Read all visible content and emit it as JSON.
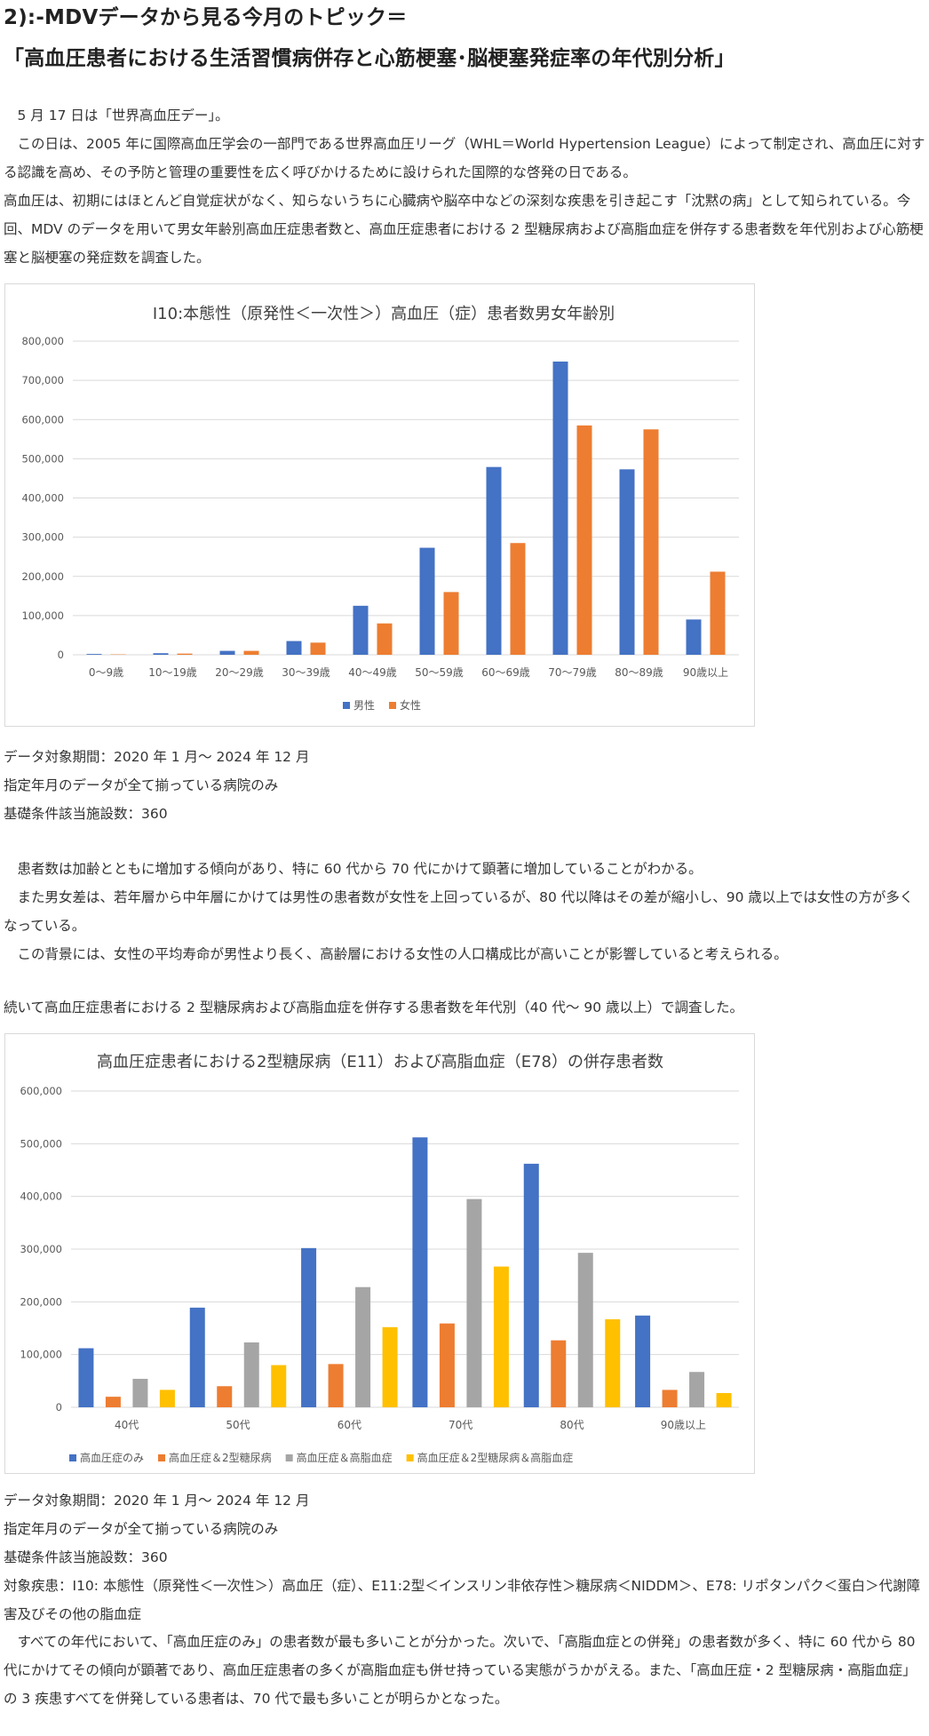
{
  "heading": {
    "line1": "2):-MDVデータから見る今月のトピック＝",
    "line2": "「高血圧患者における生活習慣病併存と心筋梗塞･脳梗塞発症率の年代別分析」"
  },
  "intro": [
    "　5 月 17 日は「世界高血圧デー」。",
    "　この日は、2005 年に国際高血圧学会の一部門である世界高血圧リーグ（WHL＝World Hypertension League）によって制定され、高血圧に対する認識を高め、その予防と管理の重要性を広く呼びかけるために設けられた国際的な啓発の日である。",
    "高血圧は、初期にはほとんど自覚症状がなく、知らないうちに心臓病や脳卒中などの深刻な疾患を引き起こす「沈黙の病」として知られている。今回、MDV のデータを用いて男女年齢別高血圧症患者数と、高血圧症患者における 2 型糖尿病および高脂血症を併存する患者数を年代別および心筋梗塞と脳梗塞の発症数を調査した。"
  ],
  "chart1_notes": [
    "データ対象期間：2020 年 1 月～ 2024 年 12 月",
    "指定年月のデータが全て揃っている病院のみ",
    "基礎条件該当施設数：360"
  ],
  "analysis1": [
    "　患者数は加齢とともに増加する傾向があり、特に 60 代から 70 代にかけて顕著に増加していることがわかる。",
    "　また男女差は、若年層から中年層にかけては男性の患者数が女性を上回っているが、80 代以降はその差が縮小し、90 歳以上では女性の方が多くなっている。",
    "　この背景には、女性の平均寿命が男性より長く、高齢層における女性の人口構成比が高いことが影響していると考えられる。"
  ],
  "intro2": "続いて高血圧症患者における 2 型糖尿病および高脂血症を併存する患者数を年代別（40 代～ 90 歳以上）で調査した。",
  "chart2_notes": [
    "データ対象期間：2020 年 1 月～ 2024 年 12 月",
    "指定年月のデータが全て揃っている病院のみ",
    "基礎条件該当施設数：360",
    "対象疾患：I10: 本態性（原発性＜一次性＞）高血圧（症）、E11:2型＜インスリン非依存性＞糖尿病＜NIDDM＞、E78: リポタンパク＜蛋白＞代謝障害及びその他の脂血症"
  ],
  "conclusion": "　すべての年代において、「高血圧症のみ」の患者数が最も多いことが分かった。次いで、「高脂血症との併発」の患者数が多く、特に 60 代から 80 代にかけてその傾向が顕著であり、高血圧症患者の多くが高脂血症も併せ持っている実態がうかがえる。また、「高血圧症・2 型糖尿病・高脂血症」の 3 疾患すべてを併発している患者は、70 代で最も多いことが明らかとなった。",
  "chart_data": [
    {
      "type": "bar",
      "title": "I10:本態性（原発性＜一次性＞）高血圧（症）患者数男女年齢別",
      "categories": [
        "0～9歳",
        "10～19歳",
        "20～29歳",
        "30～39歳",
        "40～49歳",
        "50～59歳",
        "60～69歳",
        "70～79歳",
        "80～89歳",
        "90歳以上"
      ],
      "series": [
        {
          "name": "男性",
          "color": "#4472C4",
          "values": [
            2000,
            4000,
            10000,
            35000,
            125000,
            273000,
            479000,
            748000,
            473000,
            90000
          ]
        },
        {
          "name": "女性",
          "color": "#ED7D31",
          "values": [
            1000,
            3000,
            10000,
            31000,
            80000,
            160000,
            285000,
            585000,
            575000,
            212000
          ]
        }
      ],
      "ylim": [
        0,
        800000
      ],
      "yticks": [
        0,
        100000,
        200000,
        300000,
        400000,
        500000,
        600000,
        700000,
        800000
      ],
      "ytick_labels": [
        "0",
        "100,000",
        "200,000",
        "300,000",
        "400,000",
        "500,000",
        "600,000",
        "700,000",
        "800,000"
      ],
      "grid": true,
      "legend": "bottom"
    },
    {
      "type": "bar",
      "title": "高血圧症患者における2型糖尿病（E11）および高脂血症（E78）の併存患者数",
      "categories": [
        "40代",
        "50代",
        "60代",
        "70代",
        "80代",
        "90歳以上"
      ],
      "series": [
        {
          "name": "高血圧症のみ",
          "color": "#4472C4",
          "values": [
            112000,
            189000,
            302000,
            512000,
            462000,
            174000
          ]
        },
        {
          "name": "高血圧症＆2型糖尿病",
          "color": "#ED7D31",
          "values": [
            20000,
            40000,
            82000,
            159000,
            127000,
            33000
          ]
        },
        {
          "name": "高血圧症＆高脂血症",
          "color": "#A5A5A5",
          "values": [
            54000,
            123000,
            228000,
            395000,
            293000,
            67000
          ]
        },
        {
          "name": "高血圧症＆2型糖尿病＆高脂血症",
          "color": "#FFC000",
          "values": [
            33000,
            80000,
            152000,
            267000,
            167000,
            27000
          ]
        }
      ],
      "ylim": [
        0,
        600000
      ],
      "yticks": [
        0,
        100000,
        200000,
        300000,
        400000,
        500000,
        600000
      ],
      "ytick_labels": [
        "0",
        "100,000",
        "200,000",
        "300,000",
        "400,000",
        "500,000",
        "600,000"
      ],
      "grid": true,
      "legend": "bottom"
    }
  ]
}
